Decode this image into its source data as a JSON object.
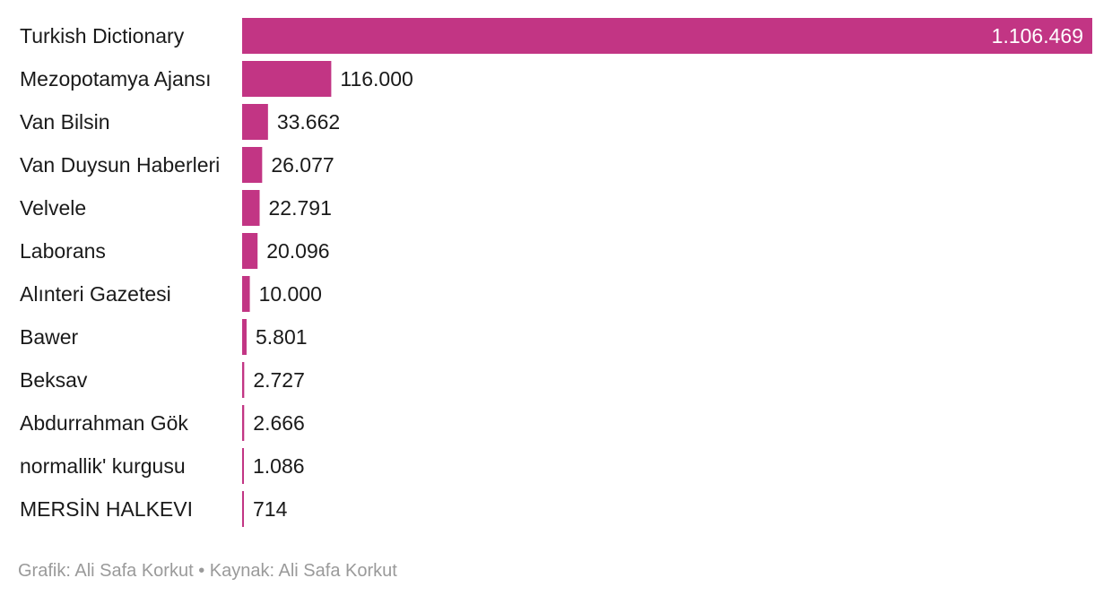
{
  "chart_data": {
    "type": "bar",
    "orientation": "horizontal",
    "categories": [
      "Turkish Dictionary",
      "Mezopotamya Ajansı",
      "Van Bilsin",
      "Van Duysun Haberleri",
      "Velvele",
      "Laborans",
      "Alınteri Gazetesi",
      "Bawer",
      "Beksav",
      "Abdurrahman Gök",
      "normallik' kurgusu",
      "MERSİN HALKEVI"
    ],
    "values": [
      1106469,
      116000,
      33662,
      26077,
      22791,
      20096,
      10000,
      5801,
      2727,
      2666,
      1086,
      714
    ],
    "value_labels": [
      "1.106.469",
      "116.000",
      "33.662",
      "26.077",
      "22.791",
      "20.096",
      "10.000",
      "5.801",
      "2.727",
      "2.666",
      "1.086",
      "714"
    ],
    "xlim": [
      0,
      1106469
    ],
    "grid": false,
    "legend": "none",
    "bar_color": "#c23584"
  },
  "footer": {
    "credit_label": "Grafik:",
    "credit_name": "Ali Safa Korkut",
    "separator": "•",
    "source_label": "Kaynak:",
    "source_name": "Ali Safa Korkut"
  }
}
